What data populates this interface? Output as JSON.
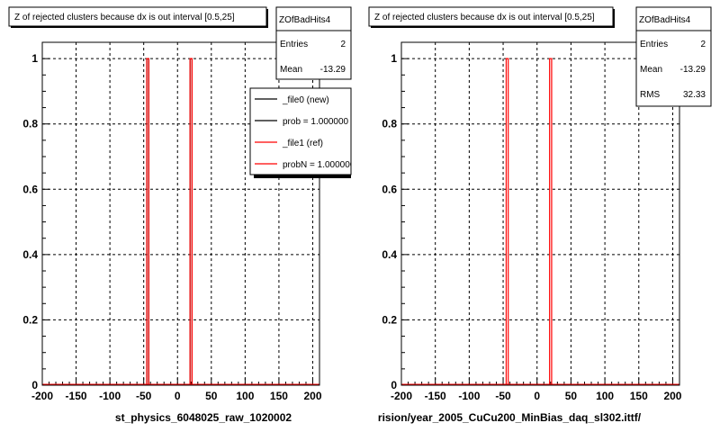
{
  "chart_data": [
    {
      "type": "bar",
      "title": "Z of rejected clusters  because dx is out interval  [0.5,25]",
      "xlabel": "st_physics_6048025_raw_1020002",
      "xlim": [
        -200,
        210
      ],
      "ylim": [
        0,
        1.05
      ],
      "x_ticks": [
        -200,
        -150,
        -100,
        -50,
        0,
        50,
        100,
        150,
        200
      ],
      "x_tick_labels": [
        "-200",
        "-150",
        "-100",
        "-50",
        "0",
        "50",
        "100",
        "150",
        "200"
      ],
      "y_ticks": [
        0,
        0.2,
        0.4,
        0.6,
        0.8,
        1
      ],
      "y_tick_labels": [
        "0",
        "0.2",
        "0.4",
        "0.6",
        "0.8",
        "1"
      ],
      "grid": true,
      "bin_width": 3,
      "series": [
        {
          "name": "_file0 (new)",
          "color": "#000000",
          "x": [
            -44,
            20
          ],
          "values": [
            1,
            1
          ]
        },
        {
          "name": "_file1 (ref)",
          "color": "#ff0000",
          "x": [
            -44,
            20
          ],
          "values": [
            1,
            1
          ]
        }
      ],
      "stats": {
        "name": "ZOfBadHits4",
        "rows": [
          {
            "label": "Entries",
            "value": "2"
          },
          {
            "label": "Mean",
            "value": "-13.29"
          }
        ]
      },
      "legend": {
        "position": "top-right",
        "entries": [
          {
            "label": "_file0 (new)",
            "color": "#000000"
          },
          {
            "label": "prob = 1.000000",
            "color": "#000000"
          },
          {
            "label": "_file1 (ref)",
            "color": "#ff0000"
          },
          {
            "label": "probN = 1.000000",
            "color": "#ff0000"
          }
        ]
      }
    },
    {
      "type": "bar",
      "title": "Z of rejected clusters  because dx is out interval  [0.5,25]",
      "xlabel": "rision/year_2005_CuCu200_MinBias_daq_sl302.ittf/",
      "xlim": [
        -200,
        210
      ],
      "ylim": [
        0,
        1.05
      ],
      "x_ticks": [
        -200,
        -150,
        -100,
        -50,
        0,
        50,
        100,
        150,
        200
      ],
      "x_tick_labels": [
        "-200",
        "-150",
        "-100",
        "-50",
        "0",
        "50",
        "100",
        "150",
        "200"
      ],
      "y_ticks": [
        0,
        0.2,
        0.4,
        0.6,
        0.8,
        1
      ],
      "y_tick_labels": [
        "0",
        "0.2",
        "0.4",
        "0.6",
        "0.8",
        "1"
      ],
      "grid": true,
      "bin_width": 3,
      "series": [
        {
          "name": "",
          "color": "#ff0000",
          "x": [
            -44,
            20
          ],
          "values": [
            1,
            1
          ]
        }
      ],
      "stats": {
        "name": "ZOfBadHits4",
        "rows": [
          {
            "label": "Entries",
            "value": "2"
          },
          {
            "label": "Mean",
            "value": "-13.29"
          },
          {
            "label": "RMS",
            "value": "32.33"
          }
        ]
      }
    }
  ]
}
